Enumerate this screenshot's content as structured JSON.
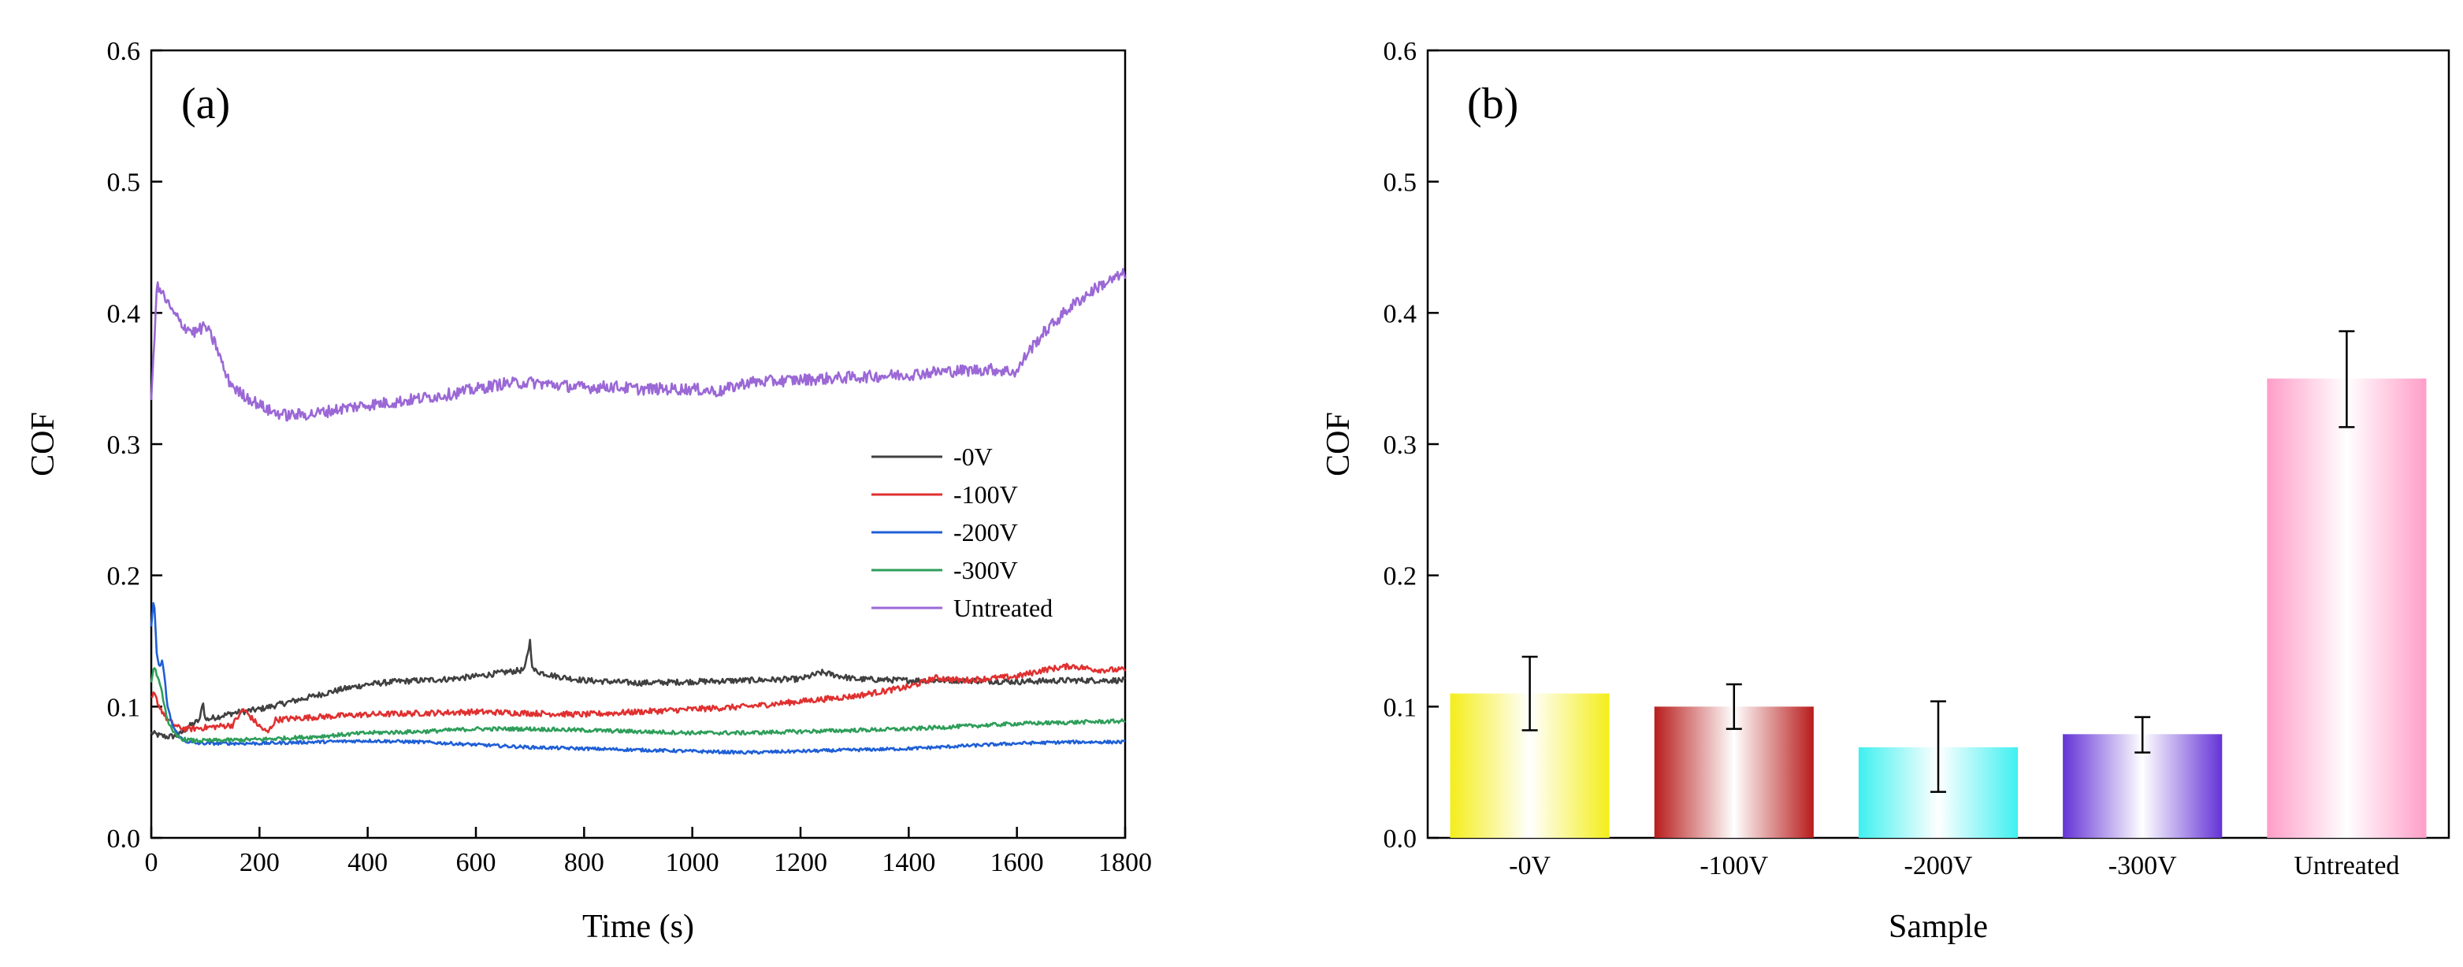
{
  "chart_data": [
    {
      "id": "a",
      "type": "line",
      "panel_label": "(a)",
      "xlabel": "Time (s)",
      "ylabel": "COF",
      "xlim": [
        0,
        1800
      ],
      "ylim": [
        0,
        0.6
      ],
      "xticks": [
        0,
        200,
        400,
        600,
        800,
        1000,
        1200,
        1400,
        1600,
        1800
      ],
      "xtick_labels": [
        "0",
        "200",
        "400",
        "600",
        "800",
        "1000",
        "1200",
        "1400",
        "1600",
        "1800"
      ],
      "yticks": [
        0.0,
        0.1,
        0.2,
        0.3,
        0.4,
        0.5,
        0.6
      ],
      "ytick_labels": [
        "0.0",
        "0.1",
        "0.2",
        "0.3",
        "0.4",
        "0.5",
        "0.6"
      ],
      "legend_position": "center-right",
      "series": [
        {
          "name": "-0V",
          "color": "#404040",
          "x": [
            0,
            15,
            30,
            50,
            70,
            90,
            95,
            100,
            120,
            150,
            200,
            250,
            300,
            350,
            400,
            450,
            500,
            550,
            600,
            650,
            690,
            700,
            705,
            720,
            750,
            800,
            850,
            900,
            1000,
            1100,
            1200,
            1240,
            1300,
            1400,
            1500,
            1600,
            1700,
            1800
          ],
          "y": [
            0.08,
            0.078,
            0.077,
            0.078,
            0.085,
            0.09,
            0.105,
            0.09,
            0.092,
            0.095,
            0.098,
            0.103,
            0.108,
            0.113,
            0.117,
            0.119,
            0.12,
            0.121,
            0.123,
            0.126,
            0.128,
            0.15,
            0.128,
            0.126,
            0.123,
            0.12,
            0.119,
            0.118,
            0.119,
            0.12,
            0.121,
            0.126,
            0.121,
            0.12,
            0.12,
            0.119,
            0.12,
            0.12
          ]
        },
        {
          "name": "-100V",
          "color": "#e03030",
          "x": [
            0,
            5,
            15,
            30,
            50,
            70,
            100,
            150,
            170,
            200,
            215,
            230,
            300,
            400,
            500,
            600,
            700,
            800,
            900,
            1000,
            1100,
            1200,
            1300,
            1400,
            1450,
            1500,
            1600,
            1650,
            1700,
            1750,
            1800
          ],
          "y": [
            0.105,
            0.11,
            0.1,
            0.09,
            0.084,
            0.083,
            0.084,
            0.086,
            0.098,
            0.085,
            0.08,
            0.09,
            0.092,
            0.094,
            0.095,
            0.096,
            0.095,
            0.094,
            0.096,
            0.098,
            0.1,
            0.104,
            0.108,
            0.115,
            0.122,
            0.12,
            0.123,
            0.128,
            0.131,
            0.128,
            0.128
          ]
        },
        {
          "name": "-200V",
          "color": "#1f5fd6",
          "x": [
            0,
            5,
            10,
            15,
            20,
            25,
            30,
            40,
            50,
            60,
            80,
            100,
            200,
            300,
            400,
            500,
            600,
            700,
            800,
            900,
            1000,
            1100,
            1200,
            1300,
            1400,
            1500,
            1600,
            1700,
            1800
          ],
          "y": [
            0.16,
            0.185,
            0.14,
            0.13,
            0.135,
            0.12,
            0.1,
            0.085,
            0.078,
            0.074,
            0.072,
            0.072,
            0.072,
            0.073,
            0.074,
            0.073,
            0.071,
            0.069,
            0.068,
            0.067,
            0.066,
            0.065,
            0.066,
            0.067,
            0.068,
            0.07,
            0.072,
            0.073,
            0.073
          ]
        },
        {
          "name": "-300V",
          "color": "#2e9e5a",
          "x": [
            0,
            5,
            10,
            20,
            30,
            40,
            50,
            60,
            80,
            100,
            200,
            300,
            400,
            500,
            600,
            700,
            800,
            900,
            1000,
            1100,
            1200,
            1300,
            1400,
            1500,
            1600,
            1700,
            1800
          ],
          "y": [
            0.12,
            0.13,
            0.125,
            0.11,
            0.09,
            0.08,
            0.077,
            0.075,
            0.074,
            0.074,
            0.075,
            0.077,
            0.08,
            0.081,
            0.083,
            0.083,
            0.082,
            0.081,
            0.08,
            0.08,
            0.081,
            0.082,
            0.083,
            0.085,
            0.087,
            0.088,
            0.089
          ]
        },
        {
          "name": "Untreated",
          "color": "#9b68d6",
          "x": [
            0,
            10,
            20,
            40,
            60,
            80,
            100,
            120,
            140,
            160,
            180,
            200,
            220,
            250,
            300,
            350,
            400,
            450,
            500,
            550,
            600,
            650,
            700,
            750,
            800,
            850,
            900,
            950,
            1000,
            1050,
            1100,
            1150,
            1200,
            1250,
            1300,
            1350,
            1400,
            1450,
            1500,
            1550,
            1600,
            1620,
            1650,
            1700,
            1750,
            1800
          ],
          "y": [
            0.33,
            0.42,
            0.415,
            0.4,
            0.39,
            0.385,
            0.39,
            0.375,
            0.35,
            0.34,
            0.335,
            0.33,
            0.325,
            0.322,
            0.323,
            0.327,
            0.33,
            0.332,
            0.335,
            0.338,
            0.342,
            0.346,
            0.347,
            0.345,
            0.343,
            0.344,
            0.342,
            0.342,
            0.342,
            0.34,
            0.347,
            0.348,
            0.349,
            0.35,
            0.351,
            0.352,
            0.353,
            0.355,
            0.356,
            0.357,
            0.355,
            0.37,
            0.385,
            0.405,
            0.42,
            0.43
          ]
        }
      ]
    },
    {
      "id": "b",
      "type": "bar",
      "panel_label": "(b)",
      "xlabel": "Sample",
      "ylabel": "COF",
      "ylim": [
        0,
        0.6
      ],
      "yticks": [
        0.0,
        0.1,
        0.2,
        0.3,
        0.4,
        0.5,
        0.6
      ],
      "ytick_labels": [
        "0.0",
        "0.1",
        "0.2",
        "0.3",
        "0.4",
        "0.5",
        "0.6"
      ],
      "categories": [
        "-0V",
        "-100V",
        "-200V",
        "-300V",
        "Untreated"
      ],
      "values": [
        0.11,
        0.1,
        0.069,
        0.079,
        0.35
      ],
      "error_low": [
        0.082,
        0.083,
        0.035,
        0.065,
        0.313
      ],
      "error_high": [
        0.138,
        0.117,
        0.104,
        0.092,
        0.386
      ],
      "colors": [
        "#f4ee1a",
        "#b81c1c",
        "#3ff0f0",
        "#6433d6",
        "#ff9ec8"
      ]
    }
  ]
}
